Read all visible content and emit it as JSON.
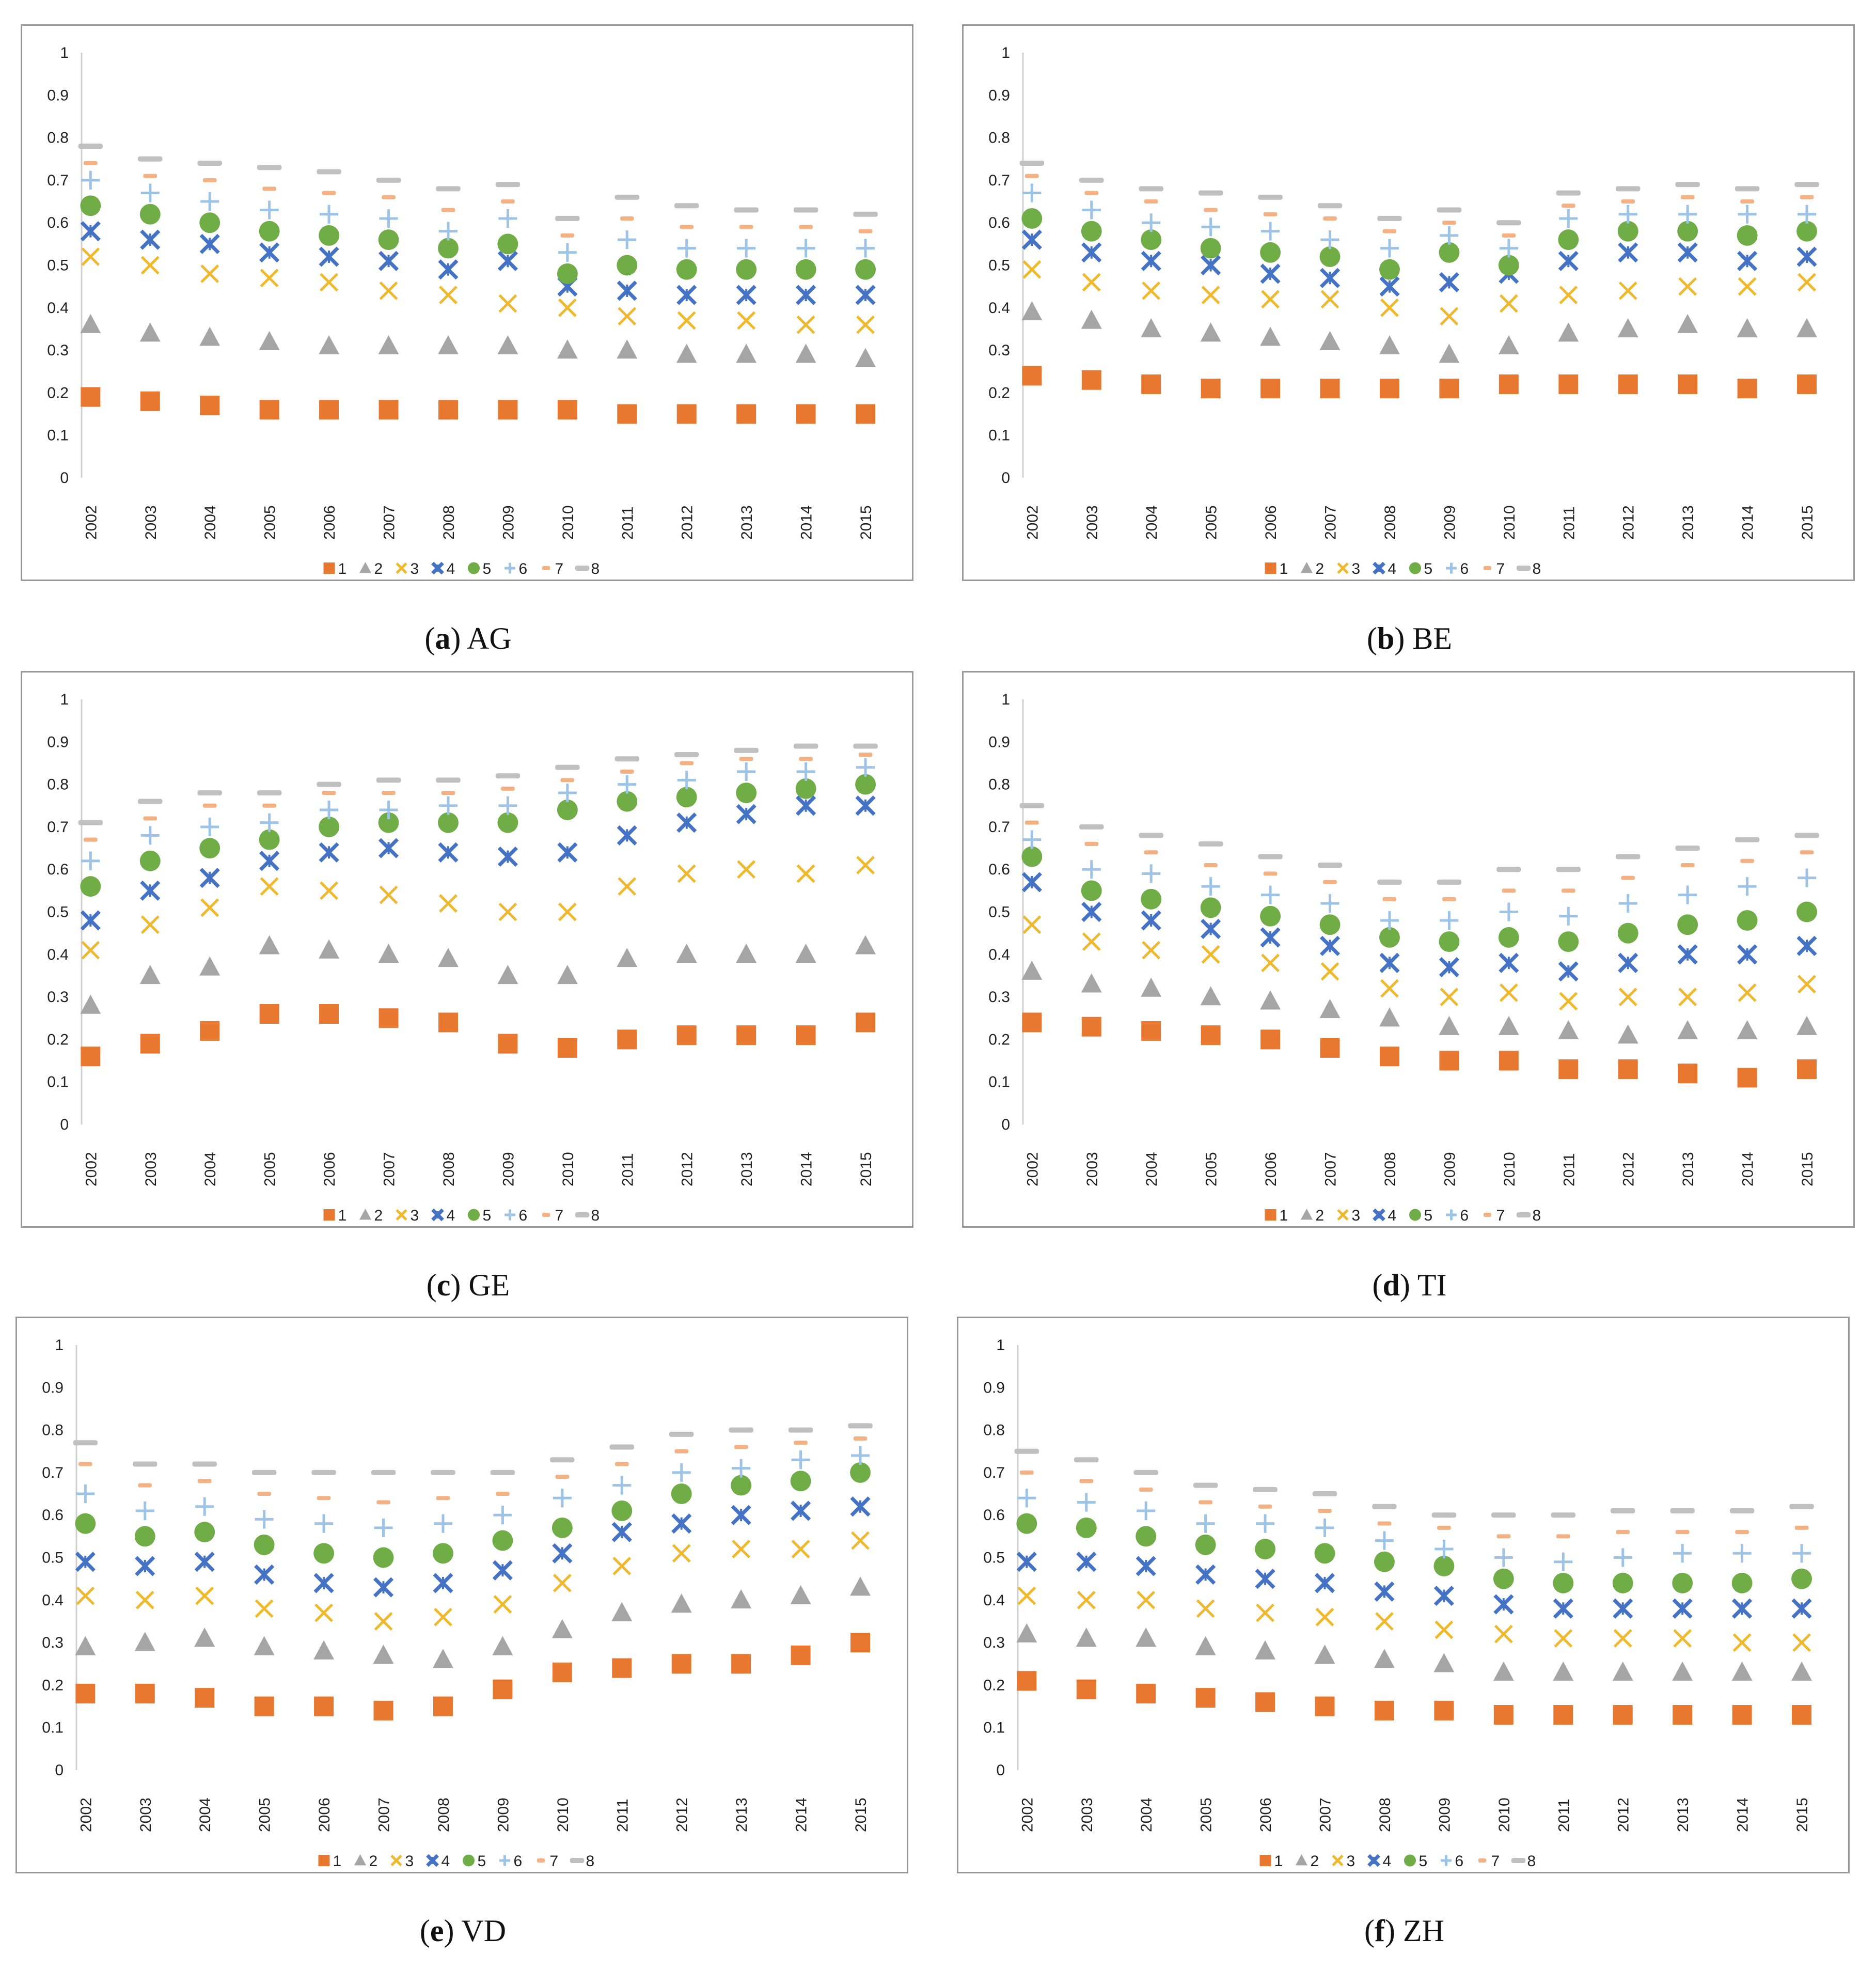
{
  "series_names": [
    "1",
    "2",
    "3",
    "4",
    "5",
    "6",
    "7",
    "8"
  ],
  "series_colors": [
    "#e8782f",
    "#a5a5a5",
    "#f0b92d",
    "#4472c4",
    "#70ad47",
    "#9dc3e6",
    "#f4b183",
    "#c0c0c0"
  ],
  "series_markers": [
    "square",
    "triangle",
    "x-mark",
    "star-x",
    "circle",
    "plus",
    "dash",
    "dash-wide"
  ],
  "y_ticks": [
    "0",
    "0.1",
    "0.2",
    "0.3",
    "0.4",
    "0.5",
    "0.6",
    "0.7",
    "0.8",
    "0.9",
    "1"
  ],
  "chart_data": [
    {
      "type": "scatter",
      "label": "a",
      "title": "AG",
      "categories": [
        "2002",
        "2003",
        "2004",
        "2005",
        "2006",
        "2007",
        "2008",
        "2009",
        "2010",
        "2011",
        "2012",
        "2013",
        "2014",
        "2015"
      ],
      "ylim": [
        0,
        1
      ],
      "series": [
        {
          "name": "1",
          "values": [
            0.19,
            0.18,
            0.17,
            0.16,
            0.16,
            0.16,
            0.16,
            0.16,
            0.16,
            0.15,
            0.15,
            0.15,
            0.15,
            0.15
          ]
        },
        {
          "name": "2",
          "values": [
            0.36,
            0.34,
            0.33,
            0.32,
            0.31,
            0.31,
            0.31,
            0.31,
            0.3,
            0.3,
            0.29,
            0.29,
            0.29,
            0.28
          ]
        },
        {
          "name": "3",
          "values": [
            0.52,
            0.5,
            0.48,
            0.47,
            0.46,
            0.44,
            0.43,
            0.41,
            0.4,
            0.38,
            0.37,
            0.37,
            0.36,
            0.36
          ]
        },
        {
          "name": "4",
          "values": [
            0.58,
            0.56,
            0.55,
            0.53,
            0.52,
            0.51,
            0.49,
            0.51,
            0.45,
            0.44,
            0.43,
            0.43,
            0.43,
            0.43
          ]
        },
        {
          "name": "5",
          "values": [
            0.64,
            0.62,
            0.6,
            0.58,
            0.57,
            0.56,
            0.54,
            0.55,
            0.48,
            0.5,
            0.49,
            0.49,
            0.49,
            0.49
          ]
        },
        {
          "name": "6",
          "values": [
            0.7,
            0.67,
            0.65,
            0.63,
            0.62,
            0.61,
            0.58,
            0.61,
            0.53,
            0.56,
            0.54,
            0.54,
            0.54,
            0.54
          ]
        },
        {
          "name": "7",
          "values": [
            0.74,
            0.71,
            0.7,
            0.68,
            0.67,
            0.66,
            0.63,
            0.65,
            0.57,
            0.61,
            0.59,
            0.59,
            0.59,
            0.58
          ]
        },
        {
          "name": "8",
          "values": [
            0.78,
            0.75,
            0.74,
            0.73,
            0.72,
            0.7,
            0.68,
            0.69,
            0.61,
            0.66,
            0.64,
            0.63,
            0.63,
            0.62
          ]
        }
      ]
    },
    {
      "type": "scatter",
      "label": "b",
      "title": "BE",
      "categories": [
        "2002",
        "2003",
        "2004",
        "2005",
        "2006",
        "2007",
        "2008",
        "2009",
        "2010",
        "2011",
        "2012",
        "2013",
        "2014",
        "2015"
      ],
      "ylim": [
        0,
        1
      ],
      "series": [
        {
          "name": "1",
          "values": [
            0.24,
            0.23,
            0.22,
            0.21,
            0.21,
            0.21,
            0.21,
            0.21,
            0.22,
            0.22,
            0.22,
            0.22,
            0.21,
            0.22
          ]
        },
        {
          "name": "2",
          "values": [
            0.39,
            0.37,
            0.35,
            0.34,
            0.33,
            0.32,
            0.31,
            0.29,
            0.31,
            0.34,
            0.35,
            0.36,
            0.35,
            0.35
          ]
        },
        {
          "name": "3",
          "values": [
            0.49,
            0.46,
            0.44,
            0.43,
            0.42,
            0.42,
            0.4,
            0.38,
            0.41,
            0.43,
            0.44,
            0.45,
            0.45,
            0.46
          ]
        },
        {
          "name": "4",
          "values": [
            0.56,
            0.53,
            0.51,
            0.5,
            0.48,
            0.47,
            0.45,
            0.46,
            0.48,
            0.51,
            0.53,
            0.53,
            0.51,
            0.52
          ]
        },
        {
          "name": "5",
          "values": [
            0.61,
            0.58,
            0.56,
            0.54,
            0.53,
            0.52,
            0.49,
            0.53,
            0.5,
            0.56,
            0.58,
            0.58,
            0.57,
            0.58
          ]
        },
        {
          "name": "6",
          "values": [
            0.67,
            0.63,
            0.6,
            0.59,
            0.58,
            0.56,
            0.54,
            0.57,
            0.54,
            0.61,
            0.62,
            0.62,
            0.62,
            0.62
          ]
        },
        {
          "name": "7",
          "values": [
            0.71,
            0.67,
            0.65,
            0.63,
            0.62,
            0.61,
            0.58,
            0.6,
            0.57,
            0.64,
            0.65,
            0.66,
            0.65,
            0.66
          ]
        },
        {
          "name": "8",
          "values": [
            0.74,
            0.7,
            0.68,
            0.67,
            0.66,
            0.64,
            0.61,
            0.63,
            0.6,
            0.67,
            0.68,
            0.69,
            0.68,
            0.69
          ]
        }
      ]
    },
    {
      "type": "scatter",
      "label": "c",
      "title": "GE",
      "categories": [
        "2002",
        "2003",
        "2004",
        "2005",
        "2006",
        "2007",
        "2008",
        "2009",
        "2010",
        "2011",
        "2012",
        "2013",
        "2014",
        "2015"
      ],
      "ylim": [
        0,
        1
      ],
      "series": [
        {
          "name": "1",
          "values": [
            0.16,
            0.19,
            0.22,
            0.26,
            0.26,
            0.25,
            0.24,
            0.19,
            0.18,
            0.2,
            0.21,
            0.21,
            0.21,
            0.24
          ]
        },
        {
          "name": "2",
          "values": [
            0.28,
            0.35,
            0.37,
            0.42,
            0.41,
            0.4,
            0.39,
            0.35,
            0.35,
            0.39,
            0.4,
            0.4,
            0.4,
            0.42
          ]
        },
        {
          "name": "3",
          "values": [
            0.41,
            0.47,
            0.51,
            0.56,
            0.55,
            0.54,
            0.52,
            0.5,
            0.5,
            0.56,
            0.59,
            0.6,
            0.59,
            0.61
          ]
        },
        {
          "name": "4",
          "values": [
            0.48,
            0.55,
            0.58,
            0.62,
            0.64,
            0.65,
            0.64,
            0.63,
            0.64,
            0.68,
            0.71,
            0.73,
            0.75,
            0.75
          ]
        },
        {
          "name": "5",
          "values": [
            0.56,
            0.62,
            0.65,
            0.67,
            0.7,
            0.71,
            0.71,
            0.71,
            0.74,
            0.76,
            0.77,
            0.78,
            0.79,
            0.8
          ]
        },
        {
          "name": "6",
          "values": [
            0.62,
            0.68,
            0.7,
            0.71,
            0.74,
            0.74,
            0.75,
            0.75,
            0.78,
            0.8,
            0.81,
            0.83,
            0.83,
            0.84
          ]
        },
        {
          "name": "7",
          "values": [
            0.67,
            0.72,
            0.75,
            0.75,
            0.78,
            0.78,
            0.78,
            0.79,
            0.81,
            0.83,
            0.85,
            0.86,
            0.86,
            0.87
          ]
        },
        {
          "name": "8",
          "values": [
            0.71,
            0.76,
            0.78,
            0.78,
            0.8,
            0.81,
            0.81,
            0.82,
            0.84,
            0.86,
            0.87,
            0.88,
            0.89,
            0.89
          ]
        }
      ]
    },
    {
      "type": "scatter",
      "label": "d",
      "title": "TI",
      "categories": [
        "2002",
        "2003",
        "2004",
        "2005",
        "2006",
        "2007",
        "2008",
        "2009",
        "2010",
        "2011",
        "2012",
        "2013",
        "2014",
        "2015"
      ],
      "ylim": [
        0,
        1
      ],
      "series": [
        {
          "name": "1",
          "values": [
            0.24,
            0.23,
            0.22,
            0.21,
            0.2,
            0.18,
            0.16,
            0.15,
            0.15,
            0.13,
            0.13,
            0.12,
            0.11,
            0.13
          ]
        },
        {
          "name": "2",
          "values": [
            0.36,
            0.33,
            0.32,
            0.3,
            0.29,
            0.27,
            0.25,
            0.23,
            0.23,
            0.22,
            0.21,
            0.22,
            0.22,
            0.23
          ]
        },
        {
          "name": "3",
          "values": [
            0.47,
            0.43,
            0.41,
            0.4,
            0.38,
            0.36,
            0.32,
            0.3,
            0.31,
            0.29,
            0.3,
            0.3,
            0.31,
            0.33
          ]
        },
        {
          "name": "4",
          "values": [
            0.57,
            0.5,
            0.48,
            0.46,
            0.44,
            0.42,
            0.38,
            0.37,
            0.38,
            0.36,
            0.38,
            0.4,
            0.4,
            0.42
          ]
        },
        {
          "name": "5",
          "values": [
            0.63,
            0.55,
            0.53,
            0.51,
            0.49,
            0.47,
            0.44,
            0.43,
            0.44,
            0.43,
            0.45,
            0.47,
            0.48,
            0.5
          ]
        },
        {
          "name": "6",
          "values": [
            0.67,
            0.6,
            0.59,
            0.56,
            0.54,
            0.52,
            0.48,
            0.48,
            0.5,
            0.49,
            0.52,
            0.54,
            0.56,
            0.58
          ]
        },
        {
          "name": "7",
          "values": [
            0.71,
            0.66,
            0.64,
            0.61,
            0.59,
            0.57,
            0.53,
            0.53,
            0.55,
            0.55,
            0.58,
            0.61,
            0.62,
            0.64
          ]
        },
        {
          "name": "8",
          "values": [
            0.75,
            0.7,
            0.68,
            0.66,
            0.63,
            0.61,
            0.57,
            0.57,
            0.6,
            0.6,
            0.63,
            0.65,
            0.67,
            0.68
          ]
        }
      ]
    },
    {
      "type": "scatter",
      "label": "e",
      "title": "VD",
      "categories": [
        "2002",
        "2003",
        "2004",
        "2005",
        "2006",
        "2007",
        "2008",
        "2009",
        "2010",
        "2011",
        "2012",
        "2013",
        "2014",
        "2015"
      ],
      "ylim": [
        0,
        1
      ],
      "series": [
        {
          "name": "1",
          "values": [
            0.18,
            0.18,
            0.17,
            0.15,
            0.15,
            0.14,
            0.15,
            0.19,
            0.23,
            0.24,
            0.25,
            0.25,
            0.27,
            0.3
          ]
        },
        {
          "name": "2",
          "values": [
            0.29,
            0.3,
            0.31,
            0.29,
            0.28,
            0.27,
            0.26,
            0.29,
            0.33,
            0.37,
            0.39,
            0.4,
            0.41,
            0.43
          ]
        },
        {
          "name": "3",
          "values": [
            0.41,
            0.4,
            0.41,
            0.38,
            0.37,
            0.35,
            0.36,
            0.39,
            0.44,
            0.48,
            0.51,
            0.52,
            0.52,
            0.54
          ]
        },
        {
          "name": "4",
          "values": [
            0.49,
            0.48,
            0.49,
            0.46,
            0.44,
            0.43,
            0.44,
            0.47,
            0.51,
            0.56,
            0.58,
            0.6,
            0.61,
            0.62
          ]
        },
        {
          "name": "5",
          "values": [
            0.58,
            0.55,
            0.56,
            0.53,
            0.51,
            0.5,
            0.51,
            0.54,
            0.57,
            0.61,
            0.65,
            0.67,
            0.68,
            0.7
          ]
        },
        {
          "name": "6",
          "values": [
            0.65,
            0.61,
            0.62,
            0.59,
            0.58,
            0.57,
            0.58,
            0.6,
            0.64,
            0.67,
            0.7,
            0.71,
            0.73,
            0.74
          ]
        },
        {
          "name": "7",
          "values": [
            0.72,
            0.67,
            0.68,
            0.65,
            0.64,
            0.63,
            0.64,
            0.65,
            0.69,
            0.72,
            0.75,
            0.76,
            0.77,
            0.78
          ]
        },
        {
          "name": "8",
          "values": [
            0.77,
            0.72,
            0.72,
            0.7,
            0.7,
            0.7,
            0.7,
            0.7,
            0.73,
            0.76,
            0.79,
            0.8,
            0.8,
            0.81
          ]
        }
      ]
    },
    {
      "type": "scatter",
      "label": "f",
      "title": "ZH",
      "categories": [
        "2002",
        "2003",
        "2004",
        "2005",
        "2006",
        "2007",
        "2008",
        "2009",
        "2010",
        "2011",
        "2012",
        "2013",
        "2014",
        "2015"
      ],
      "ylim": [
        0,
        1
      ],
      "series": [
        {
          "name": "1",
          "values": [
            0.21,
            0.19,
            0.18,
            0.17,
            0.16,
            0.15,
            0.14,
            0.14,
            0.13,
            0.13,
            0.13,
            0.13,
            0.13,
            0.13
          ]
        },
        {
          "name": "2",
          "values": [
            0.32,
            0.31,
            0.31,
            0.29,
            0.28,
            0.27,
            0.26,
            0.25,
            0.23,
            0.23,
            0.23,
            0.23,
            0.23,
            0.23
          ]
        },
        {
          "name": "3",
          "values": [
            0.41,
            0.4,
            0.4,
            0.38,
            0.37,
            0.36,
            0.35,
            0.33,
            0.32,
            0.31,
            0.31,
            0.31,
            0.3,
            0.3
          ]
        },
        {
          "name": "4",
          "values": [
            0.49,
            0.49,
            0.48,
            0.46,
            0.45,
            0.44,
            0.42,
            0.41,
            0.39,
            0.38,
            0.38,
            0.38,
            0.38,
            0.38
          ]
        },
        {
          "name": "5",
          "values": [
            0.58,
            0.57,
            0.55,
            0.53,
            0.52,
            0.51,
            0.49,
            0.48,
            0.45,
            0.44,
            0.44,
            0.44,
            0.44,
            0.45
          ]
        },
        {
          "name": "6",
          "values": [
            0.64,
            0.63,
            0.61,
            0.58,
            0.58,
            0.57,
            0.54,
            0.52,
            0.5,
            0.49,
            0.5,
            0.51,
            0.51,
            0.51
          ]
        },
        {
          "name": "7",
          "values": [
            0.7,
            0.68,
            0.66,
            0.63,
            0.62,
            0.61,
            0.58,
            0.57,
            0.55,
            0.55,
            0.56,
            0.56,
            0.56,
            0.57
          ]
        },
        {
          "name": "8",
          "values": [
            0.75,
            0.73,
            0.7,
            0.67,
            0.66,
            0.65,
            0.62,
            0.6,
            0.6,
            0.6,
            0.61,
            0.61,
            0.61,
            0.62
          ]
        }
      ]
    }
  ]
}
